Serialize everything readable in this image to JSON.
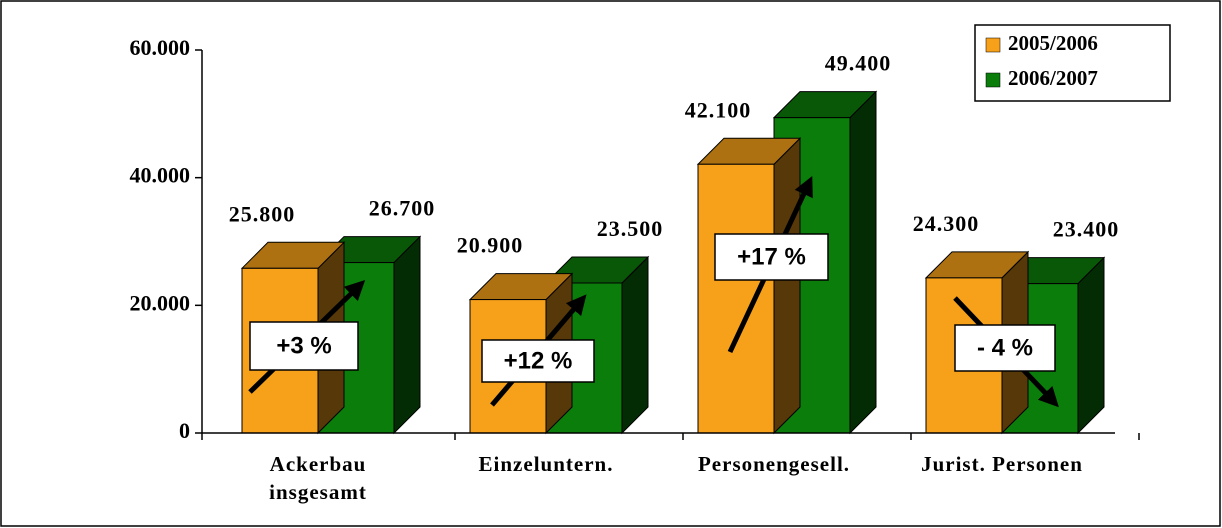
{
  "chart_data": {
    "type": "bar3d",
    "categories": [
      "Ackerbau\ninsgesamt",
      "Einzeluntern.",
      "Personengesell.",
      "Jurist. Personen"
    ],
    "series": [
      {
        "name": "2005/2006",
        "color": "#f7a11a",
        "values": [
          25800,
          20900,
          42100,
          24300
        ],
        "value_labels": [
          "25.800",
          "20.900",
          "42.100",
          "24.300"
        ]
      },
      {
        "name": "2006/2007",
        "color": "#0b7d0b",
        "values": [
          26700,
          23500,
          49400,
          23400
        ],
        "value_labels": [
          "26.700",
          "23.500",
          "49.400",
          "23.400"
        ]
      }
    ],
    "ylim": [
      0,
      60000
    ],
    "yticks": [
      0,
      {
        "value": 20000,
        "label": "20.000"
      },
      {
        "value": 40000,
        "label": "40.000"
      },
      {
        "value": 60000,
        "label": "60.000"
      }
    ],
    "annotations": [
      "+3 %",
      "+12 %",
      "+17 %",
      "- 4 %"
    ],
    "legend": "top-right"
  }
}
